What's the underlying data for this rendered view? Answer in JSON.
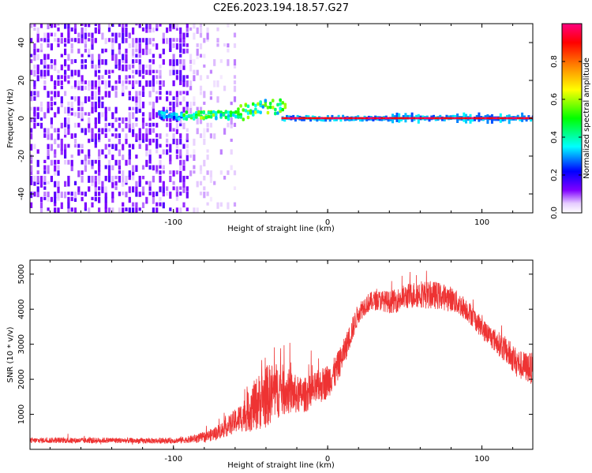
{
  "title": "C2E6.2023.194.18.57.G27",
  "chart_data": [
    {
      "type": "heatmap",
      "xlabel": "Height of straight line (km)",
      "ylabel": "Frequency (Hz)",
      "xlim": [
        -193,
        133
      ],
      "ylim": [
        -50,
        50
      ],
      "xticks": [
        -100,
        0,
        100
      ],
      "yticks": [
        -40,
        -20,
        0,
        20,
        40
      ],
      "colorbar": {
        "label": "Normalized spectral amplitude",
        "range": [
          0,
          1
        ],
        "ticks": [
          0.0,
          0.2,
          0.4,
          0.6,
          0.8
        ],
        "colors": [
          "#ffffff",
          "#7f00ff",
          "#0000ff",
          "#00ffff",
          "#00ff00",
          "#ffff00",
          "#ff8000",
          "#ff0000",
          "#ff0080"
        ]
      },
      "description_regions": [
        {
          "x": [
            -193,
            -90
          ],
          "freq": [
            -50,
            50
          ],
          "amplitude": [
            0.05,
            0.2
          ]
        },
        {
          "x": [
            -90,
            -60
          ],
          "freq": [
            -50,
            50
          ],
          "amplitude": [
            0.02,
            0.08
          ]
        },
        {
          "x": [
            -110,
            -30
          ],
          "freq": [
            -5,
            12
          ],
          "amplitude": [
            0.3,
            0.7
          ]
        },
        {
          "x": [
            -30,
            133
          ],
          "freq": [
            -2,
            2
          ],
          "amplitude": [
            0.8,
            1.0
          ]
        }
      ]
    },
    {
      "type": "line",
      "xlabel": "Height of straight line (km)",
      "ylabel": "SNR (10 * v/v)",
      "xlim": [
        -193,
        133
      ],
      "ylim": [
        0,
        5400
      ],
      "xticks": [
        -100,
        0,
        100
      ],
      "yticks": [
        1000,
        2000,
        3000,
        4000,
        5000
      ],
      "color": "#ee3333",
      "x": [
        -193,
        -180,
        -160,
        -140,
        -120,
        -100,
        -90,
        -80,
        -75,
        -70,
        -65,
        -60,
        -55,
        -50,
        -45,
        -40,
        -35,
        -30,
        -25,
        -20,
        -15,
        -10,
        -5,
        0,
        5,
        10,
        15,
        20,
        25,
        30,
        35,
        40,
        45,
        50,
        55,
        60,
        65,
        70,
        75,
        80,
        85,
        90,
        95,
        100,
        105,
        110,
        115,
        120,
        125,
        133
      ],
      "y": [
        250,
        260,
        250,
        260,
        240,
        250,
        280,
        350,
        420,
        520,
        650,
        800,
        950,
        1150,
        1350,
        1500,
        1650,
        1700,
        1650,
        1550,
        1550,
        1650,
        1800,
        1950,
        2200,
        2700,
        3300,
        3900,
        4150,
        4250,
        4250,
        4200,
        4250,
        4350,
        4400,
        4450,
        4400,
        4400,
        4350,
        4300,
        4150,
        4000,
        3750,
        3450,
        3250,
        3050,
        2850,
        2600,
        2400,
        2300
      ],
      "noise_amplitude": [
        80,
        80,
        80,
        80,
        80,
        80,
        100,
        150,
        180,
        220,
        280,
        350,
        450,
        650,
        800,
        900,
        850,
        750,
        650,
        550,
        500,
        500,
        500,
        500,
        450,
        400,
        350,
        300,
        280,
        280,
        300,
        320,
        340,
        360,
        380,
        400,
        400,
        400,
        380,
        360,
        340,
        320,
        300,
        300,
        320,
        340,
        380,
        400,
        420,
        450
      ]
    }
  ]
}
